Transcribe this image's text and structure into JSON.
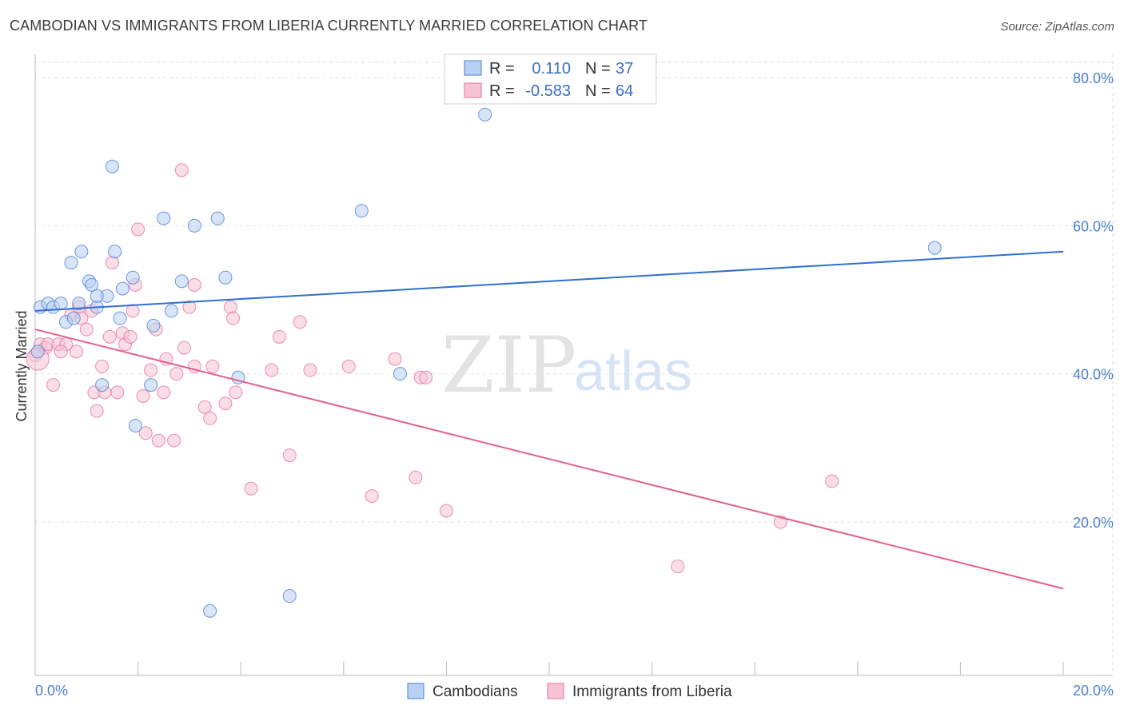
{
  "title": "CAMBODIAN VS IMMIGRANTS FROM LIBERIA CURRENTLY MARRIED CORRELATION CHART",
  "source": "Source: ZipAtlas.com",
  "watermark": {
    "zip": "ZIP",
    "atlas": "atlas"
  },
  "colors": {
    "blue": "#4a7fd0",
    "blue_fill": "#b8d0f3",
    "blue_line": "#2f6fd0",
    "pink": "#e8729d",
    "pink_fill": "#f6c3d3",
    "pink_line": "#e0608f"
  },
  "legend": {
    "rows": [
      {
        "r_label": "R =",
        "r_value": "0.110",
        "n_label": "N =",
        "n_value": "37"
      },
      {
        "r_label": "R =",
        "r_value": "-0.583",
        "n_label": "N =",
        "n_value": "64"
      }
    ]
  },
  "bottom_legend": [
    "Cambodians",
    "Immigrants from Liberia"
  ],
  "chart_data": {
    "type": "scatter",
    "ylabel": "Currently Married",
    "xlim": [
      0,
      20
    ],
    "ylim": [
      0,
      84
    ],
    "x_tick_labels": [
      {
        "x": 0,
        "label": "0.0%"
      },
      {
        "x": 20,
        "label": "20.0%"
      }
    ],
    "y_tick_labels": [
      {
        "y": 80,
        "label": "80.0%"
      },
      {
        "y": 60,
        "label": "60.0%"
      },
      {
        "y": 40,
        "label": "40.0%"
      },
      {
        "y": 20,
        "label": "20.0%"
      }
    ],
    "x_minor_ticks": [
      0,
      2,
      4,
      6,
      8,
      10,
      12,
      14,
      16,
      18,
      20
    ],
    "series": [
      {
        "name": "Cambodians",
        "color": "blue",
        "trend": {
          "x": [
            0,
            20
          ],
          "y": [
            48.5,
            56.5
          ]
        },
        "points": [
          [
            0.1,
            49
          ],
          [
            0.25,
            49.5
          ],
          [
            0.35,
            49
          ],
          [
            0.5,
            49.5
          ],
          [
            0.6,
            47
          ],
          [
            0.7,
            55
          ],
          [
            0.75,
            47.5
          ],
          [
            0.85,
            49.5
          ],
          [
            0.9,
            56.5
          ],
          [
            1.05,
            52.5
          ],
          [
            1.1,
            52
          ],
          [
            1.2,
            49
          ],
          [
            1.4,
            50.5
          ],
          [
            1.5,
            68
          ],
          [
            1.55,
            56.5
          ],
          [
            1.65,
            47.5
          ],
          [
            1.7,
            51.5
          ],
          [
            1.9,
            53
          ],
          [
            1.95,
            33
          ],
          [
            2.25,
            38.5
          ],
          [
            2.3,
            46.5
          ],
          [
            2.5,
            61
          ],
          [
            2.65,
            48.5
          ],
          [
            2.85,
            52.5
          ],
          [
            3.1,
            60
          ],
          [
            3.55,
            61
          ],
          [
            3.7,
            53
          ],
          [
            3.4,
            8
          ],
          [
            3.95,
            39.5
          ],
          [
            4.95,
            10
          ],
          [
            6.35,
            62
          ],
          [
            7.1,
            40
          ],
          [
            8.75,
            75
          ],
          [
            17.5,
            57
          ],
          [
            1.3,
            38.5
          ],
          [
            0.05,
            43
          ],
          [
            1.2,
            50.5
          ]
        ]
      },
      {
        "name": "Immigrants from Liberia",
        "color": "pink",
        "trend": {
          "x": [
            0,
            20
          ],
          "y": [
            46,
            11
          ]
        },
        "points": [
          [
            0.1,
            44
          ],
          [
            0.2,
            43.5
          ],
          [
            0.25,
            44
          ],
          [
            0.35,
            38.5
          ],
          [
            0.45,
            44
          ],
          [
            0.6,
            44
          ],
          [
            0.7,
            48
          ],
          [
            0.8,
            43
          ],
          [
            0.85,
            49
          ],
          [
            0.9,
            47.5
          ],
          [
            1.0,
            46
          ],
          [
            1.1,
            48.5
          ],
          [
            1.15,
            37.5
          ],
          [
            1.2,
            35
          ],
          [
            1.3,
            41
          ],
          [
            1.35,
            37.5
          ],
          [
            1.45,
            45
          ],
          [
            1.5,
            55
          ],
          [
            1.6,
            37.5
          ],
          [
            1.7,
            45.5
          ],
          [
            1.75,
            44
          ],
          [
            1.85,
            45
          ],
          [
            1.9,
            48.5
          ],
          [
            1.95,
            52
          ],
          [
            2.0,
            59.5
          ],
          [
            2.1,
            37
          ],
          [
            2.15,
            32
          ],
          [
            2.25,
            40.5
          ],
          [
            2.35,
            46
          ],
          [
            2.4,
            31
          ],
          [
            2.5,
            37.5
          ],
          [
            2.55,
            42
          ],
          [
            2.7,
            31
          ],
          [
            2.75,
            40
          ],
          [
            2.85,
            67.5
          ],
          [
            2.9,
            43.5
          ],
          [
            3.0,
            49
          ],
          [
            3.1,
            52
          ],
          [
            3.1,
            41
          ],
          [
            3.3,
            35.5
          ],
          [
            3.4,
            34
          ],
          [
            3.45,
            41
          ],
          [
            3.7,
            36
          ],
          [
            3.8,
            49
          ],
          [
            3.85,
            47.5
          ],
          [
            3.9,
            37.5
          ],
          [
            4.2,
            24.5
          ],
          [
            4.6,
            40.5
          ],
          [
            4.75,
            45
          ],
          [
            4.95,
            29
          ],
          [
            5.15,
            47
          ],
          [
            5.35,
            40.5
          ],
          [
            6.1,
            41
          ],
          [
            6.55,
            23.5
          ],
          [
            7.0,
            42
          ],
          [
            7.4,
            26
          ],
          [
            7.5,
            39.5
          ],
          [
            7.6,
            39.5
          ],
          [
            8.0,
            21.5
          ],
          [
            12.5,
            14
          ],
          [
            14.5,
            20
          ],
          [
            15.5,
            25.5
          ],
          [
            0.0,
            42.5
          ],
          [
            0.5,
            43
          ]
        ]
      }
    ]
  }
}
